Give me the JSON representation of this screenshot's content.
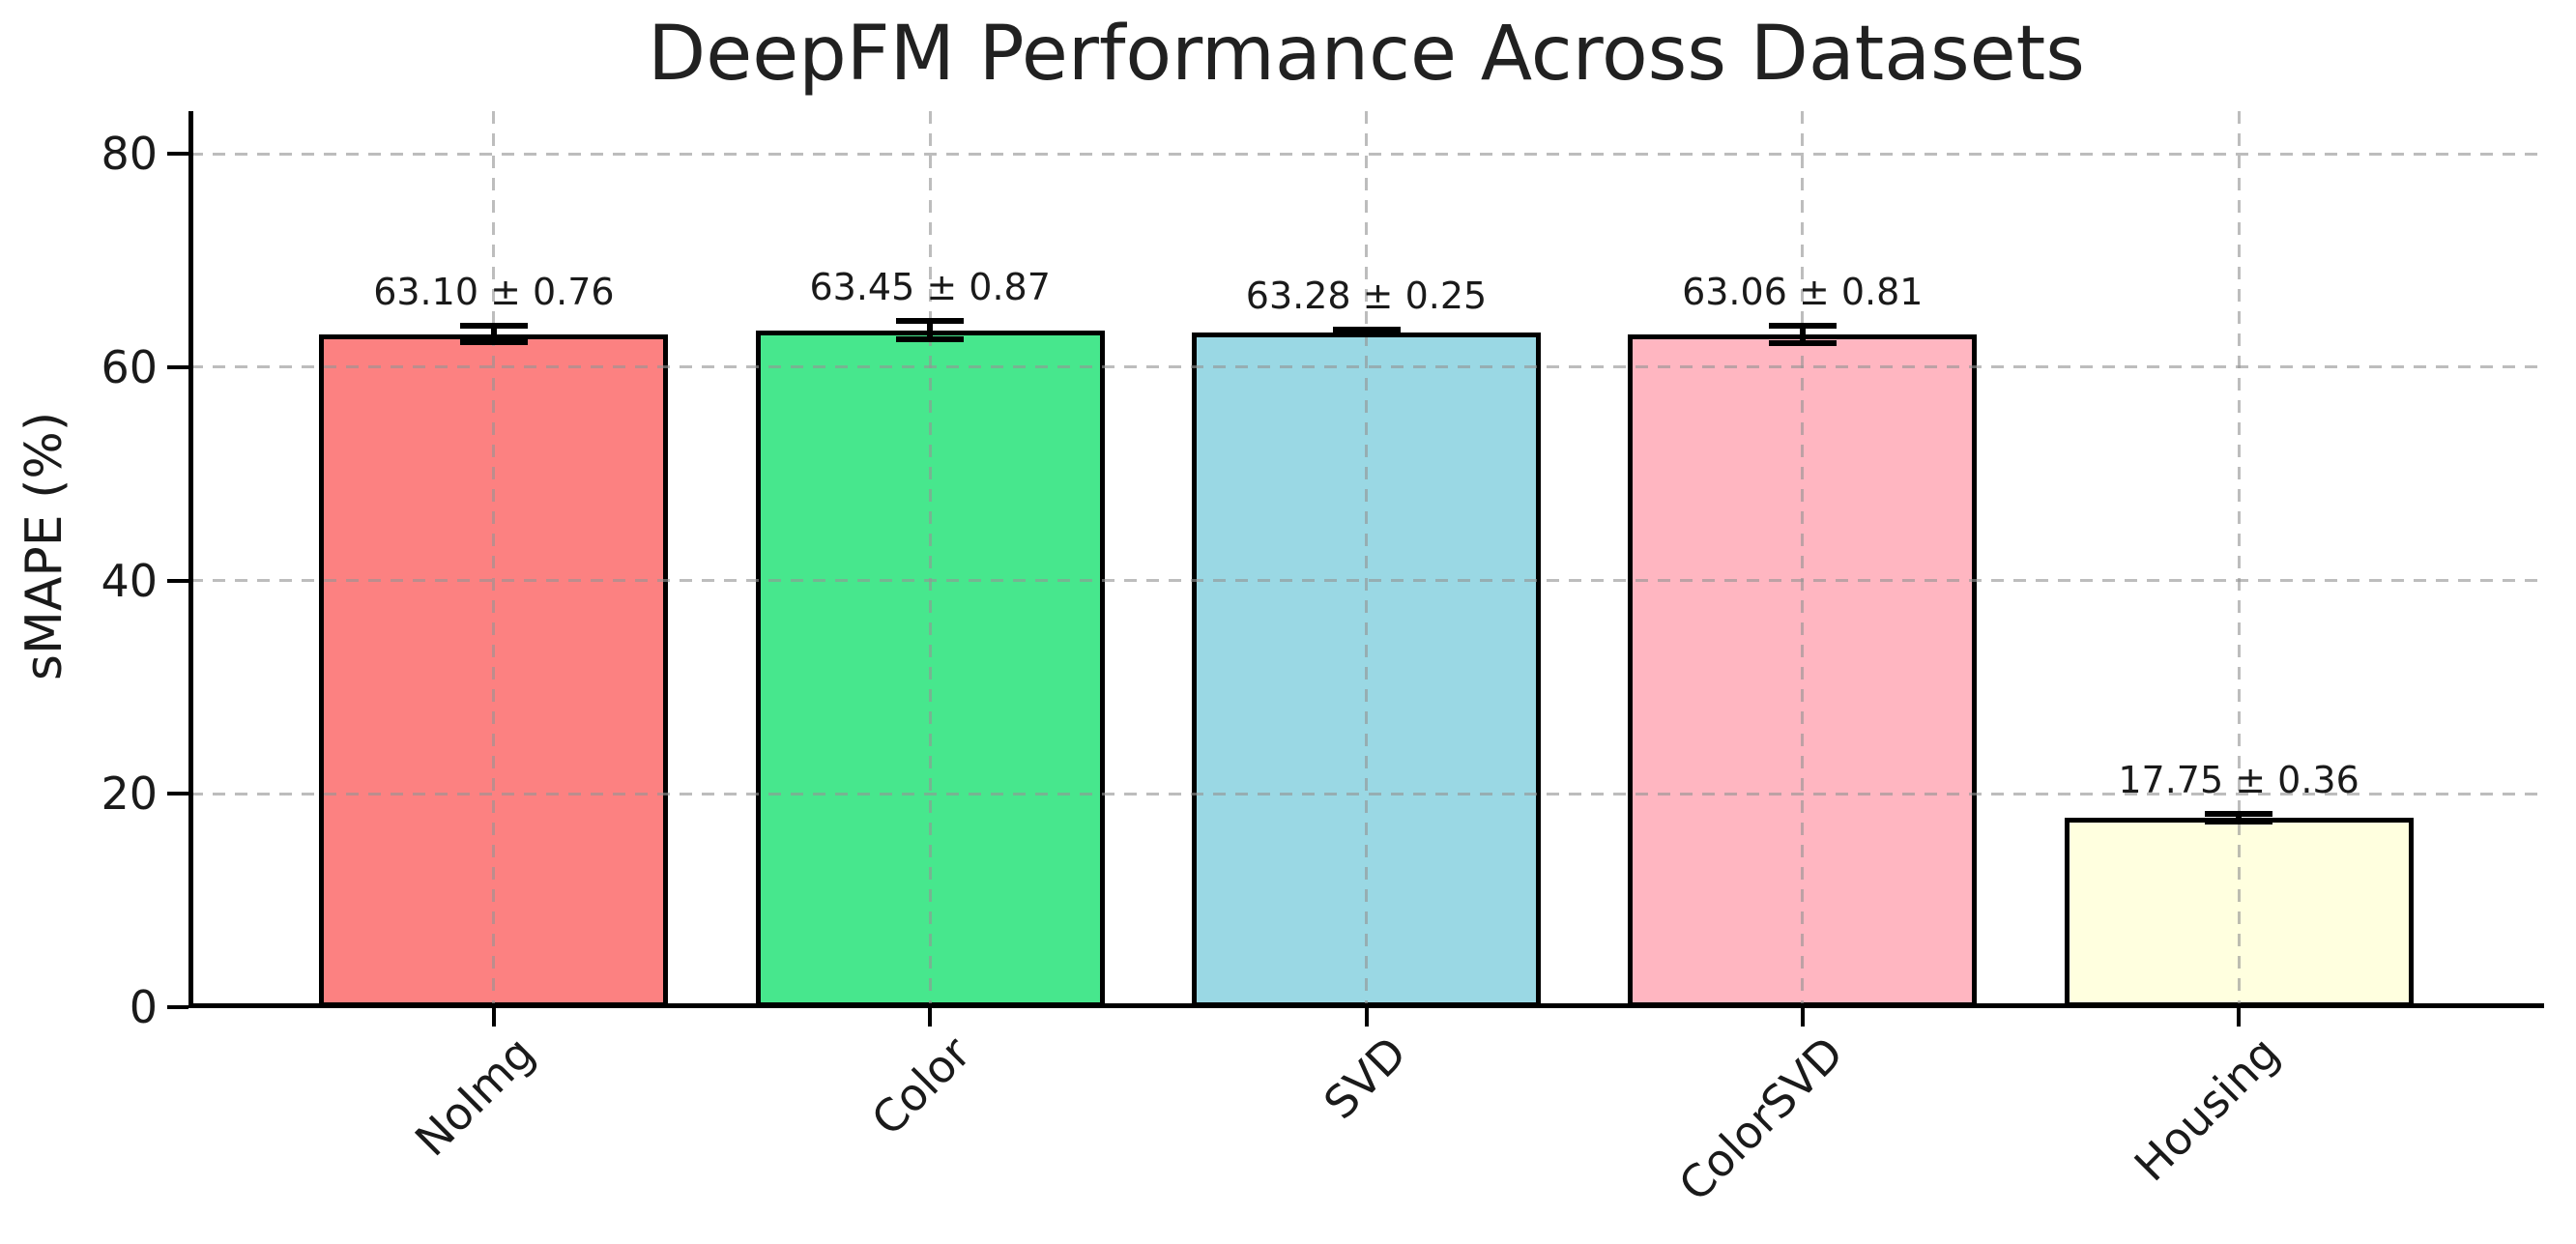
{
  "chart_data": {
    "type": "bar",
    "title": "DeepFM Performance Across Datasets",
    "ylabel": "sMAPE (%)",
    "categories": [
      "NoImg",
      "Color",
      "SVD",
      "ColorSVD",
      "Housing"
    ],
    "values": [
      63.1,
      63.45,
      63.28,
      63.06,
      17.75
    ],
    "errors": [
      0.76,
      0.87,
      0.25,
      0.81,
      0.36
    ],
    "bar_labels": [
      "63.10 ± 0.76",
      "63.45 ± 0.87",
      "63.28 ± 0.25",
      "63.06 ± 0.81",
      "17.75 ± 0.36"
    ],
    "bar_colors": [
      "#FC8181",
      "#47E78D",
      "#9AD8E4",
      "#FFB6C1",
      "#FFFFDF"
    ],
    "bar_edge_color": "#000000",
    "yticks": [
      0,
      20,
      40,
      60,
      80
    ],
    "ylim": [
      0,
      84
    ],
    "grid": true,
    "grid_style": "dashed",
    "legend_position": "none"
  }
}
